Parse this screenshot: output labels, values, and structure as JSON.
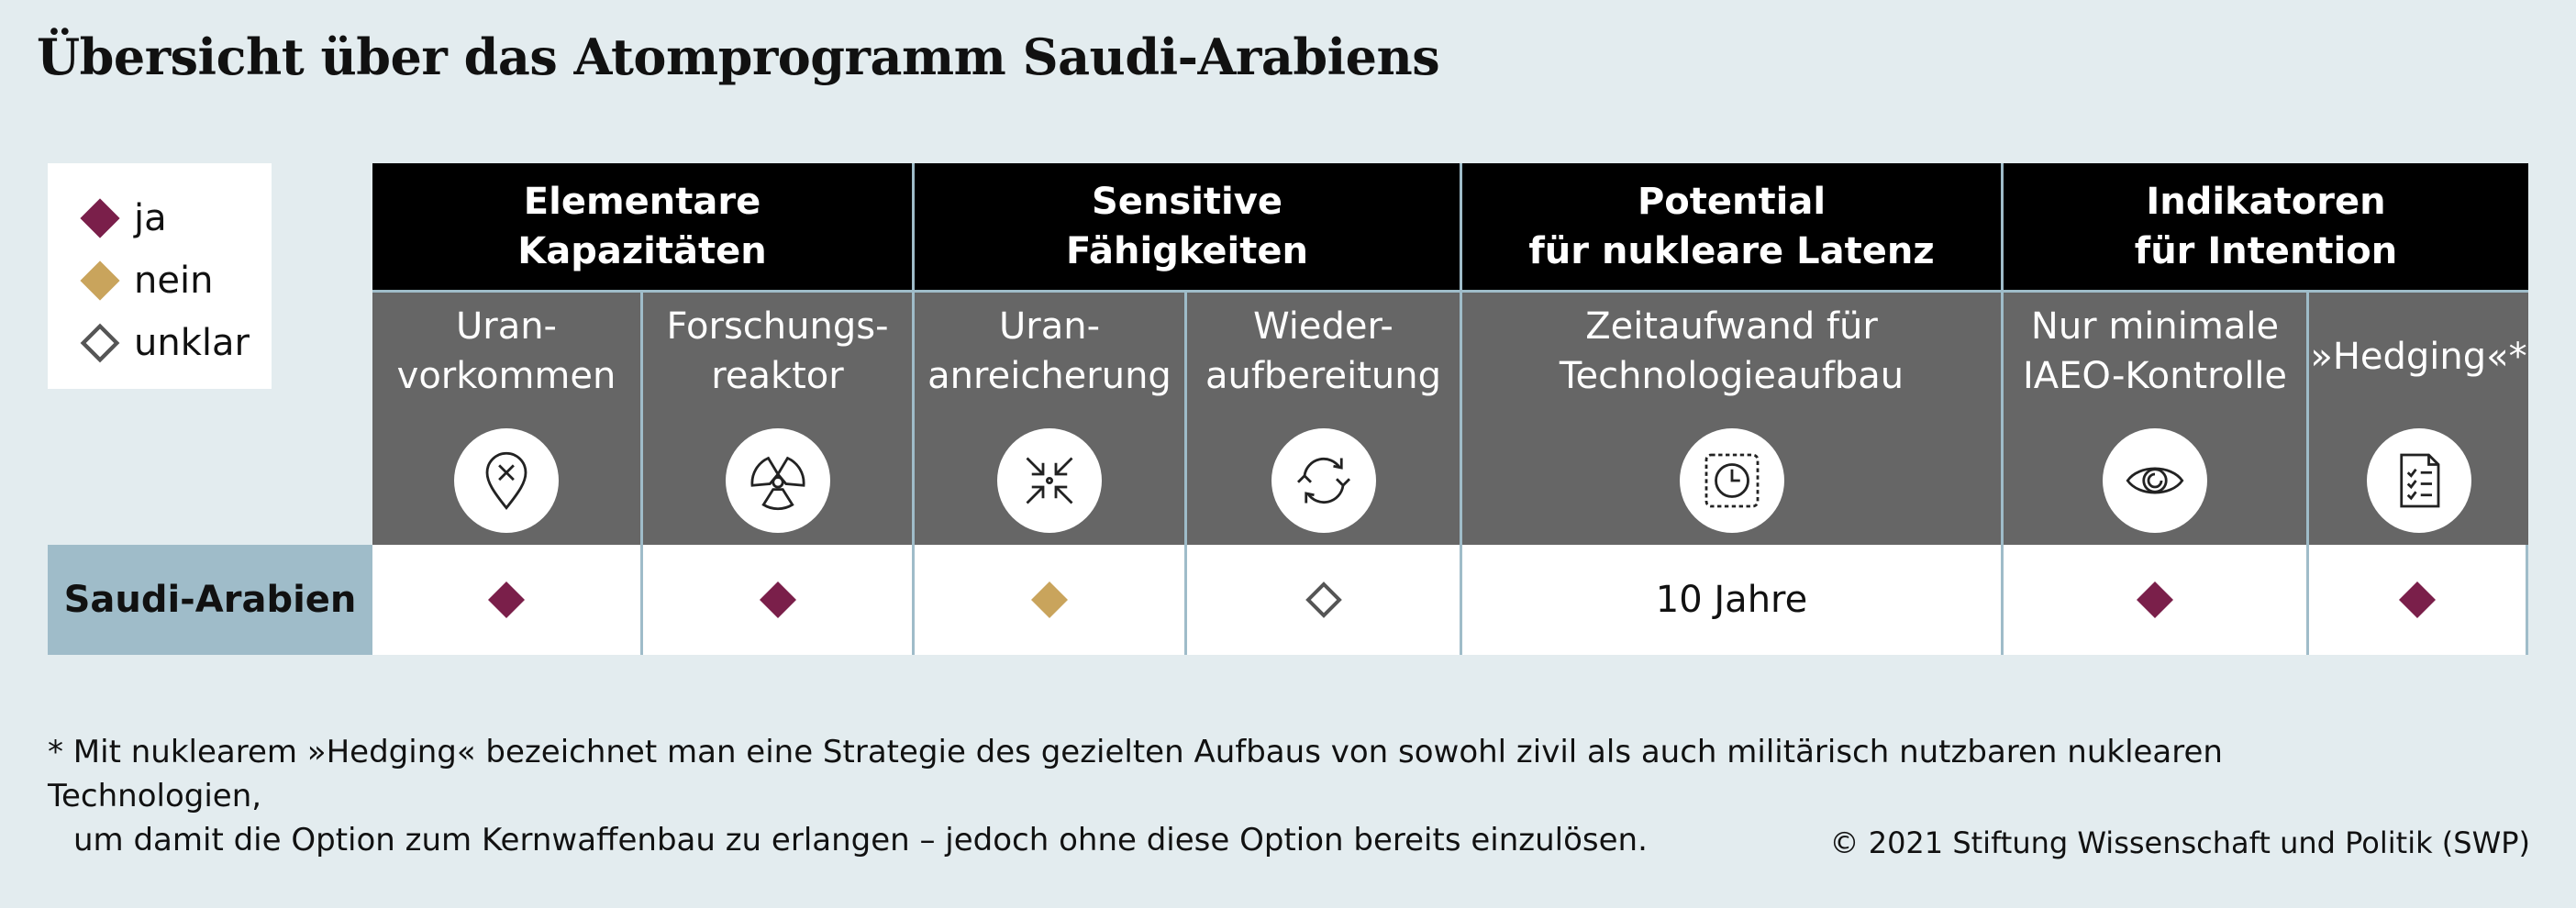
{
  "title": "Übersicht über das Atomprogramm Saudi-Arabiens",
  "colors": {
    "ja": "#7a1f4a",
    "nein": "#c9a45c",
    "unklar": "#555555",
    "header_bg": "#000000",
    "subheader_bg": "#666666",
    "country_bg": "#9fbcc9",
    "page_bg": "#e3ecef"
  },
  "legend": [
    {
      "status": "ja",
      "label": "ja"
    },
    {
      "status": "nein",
      "label": "nein"
    },
    {
      "status": "unklar",
      "label": "unklar"
    }
  ],
  "groups": [
    {
      "line1": "Elementare",
      "line2": "Kapazitäten"
    },
    {
      "line1": "Sensitive",
      "line2": "Fähigkeiten"
    },
    {
      "line1": "Potential",
      "line2": "für nukleare Latenz"
    },
    {
      "line1": "Indikatoren",
      "line2": "für Intention"
    }
  ],
  "columns": [
    {
      "line1": "Uran-",
      "line2": "vorkommen",
      "icon": "map-pin-x-icon"
    },
    {
      "line1": "Forschungs-",
      "line2": "reaktor",
      "icon": "radiation-icon"
    },
    {
      "line1": "Uran-",
      "line2": "anreicherung",
      "icon": "compress-arrows-icon"
    },
    {
      "line1": "Wieder-",
      "line2": "aufbereitung",
      "icon": "recycle-arrows-icon"
    },
    {
      "line1": "Zeitaufwand für",
      "line2": "Technologieaufbau",
      "icon": "clock-icon"
    },
    {
      "line1": "Nur minimale",
      "line2": "IAEO-Kontrolle",
      "icon": "eye-icon"
    },
    {
      "line1": "»Hedging«*",
      "line2": "",
      "icon": "checklist-document-icon"
    }
  ],
  "row": {
    "country": "Saudi-Arabien",
    "values": [
      {
        "status": "ja"
      },
      {
        "status": "ja"
      },
      {
        "status": "nein"
      },
      {
        "status": "unklar"
      },
      {
        "text": "10 Jahre"
      },
      {
        "status": "ja"
      },
      {
        "status": "ja"
      }
    ]
  },
  "footnote": {
    "line1": "* Mit nuklearem »Hedging« bezeichnet man eine Strategie des gezielten Aufbaus von sowohl zivil als auch militärisch nutzbaren nuklearen Technologien,",
    "line2": "um damit die Option zum Kernwaffenbau zu erlangen – jedoch ohne diese Option bereits einzulösen."
  },
  "copyright": "© 2021 Stiftung Wissenschaft und Politik (SWP)"
}
